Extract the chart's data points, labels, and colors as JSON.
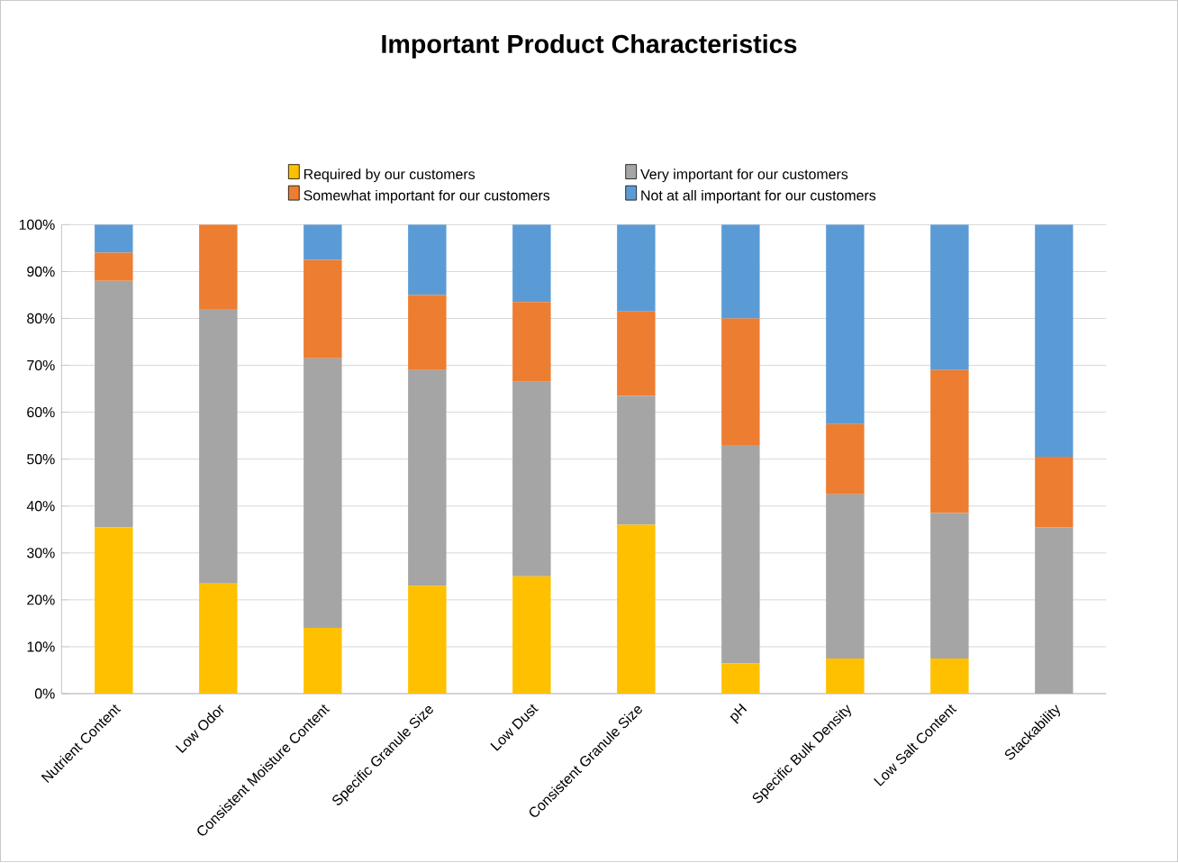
{
  "chart_data": {
    "type": "bar",
    "stacked": true,
    "title": "Important Product Characteristics",
    "categories": [
      "Nutrient Content",
      "Low Odor",
      "Consistent Moisture Content",
      "Specific Granule Size",
      "Low Dust",
      "Consistent Granule Size",
      "pH",
      "Specific Bulk Density",
      "Low Salt Content",
      "Stackability"
    ],
    "series": [
      {
        "name": "Required by our customers",
        "color": "#ffc000",
        "values": [
          35.5,
          23.5,
          14,
          23,
          25,
          36,
          6.5,
          7.5,
          7.5,
          0
        ]
      },
      {
        "name": "Very important for our customers",
        "color": "#a5a5a5",
        "values": [
          52.5,
          58.5,
          57.5,
          46,
          41.5,
          27.5,
          46.5,
          35,
          31,
          35.5
        ]
      },
      {
        "name": "Somewhat important for our customers",
        "color": "#ed7d31",
        "values": [
          6,
          18,
          21,
          16,
          17,
          18,
          27,
          15,
          30.5,
          15
        ]
      },
      {
        "name": "Not at all important for our customers",
        "color": "#5b9bd5",
        "values": [
          6,
          0,
          7.5,
          15,
          16.5,
          18.5,
          20,
          42.5,
          31,
          49.5
        ]
      }
    ],
    "ylim": [
      0,
      100
    ],
    "yticks": [
      {
        "value": 0,
        "label": "0%"
      },
      {
        "value": 10,
        "label": "10%"
      },
      {
        "value": 20,
        "label": "20%"
      },
      {
        "value": 30,
        "label": "30%"
      },
      {
        "value": 40,
        "label": "40%"
      },
      {
        "value": 50,
        "label": "50%"
      },
      {
        "value": 60,
        "label": "60%"
      },
      {
        "value": 70,
        "label": "70%"
      },
      {
        "value": 80,
        "label": "80%"
      },
      {
        "value": 90,
        "label": "90%"
      },
      {
        "value": 100,
        "label": "100%"
      }
    ],
    "grid": "y",
    "legend": "top"
  }
}
